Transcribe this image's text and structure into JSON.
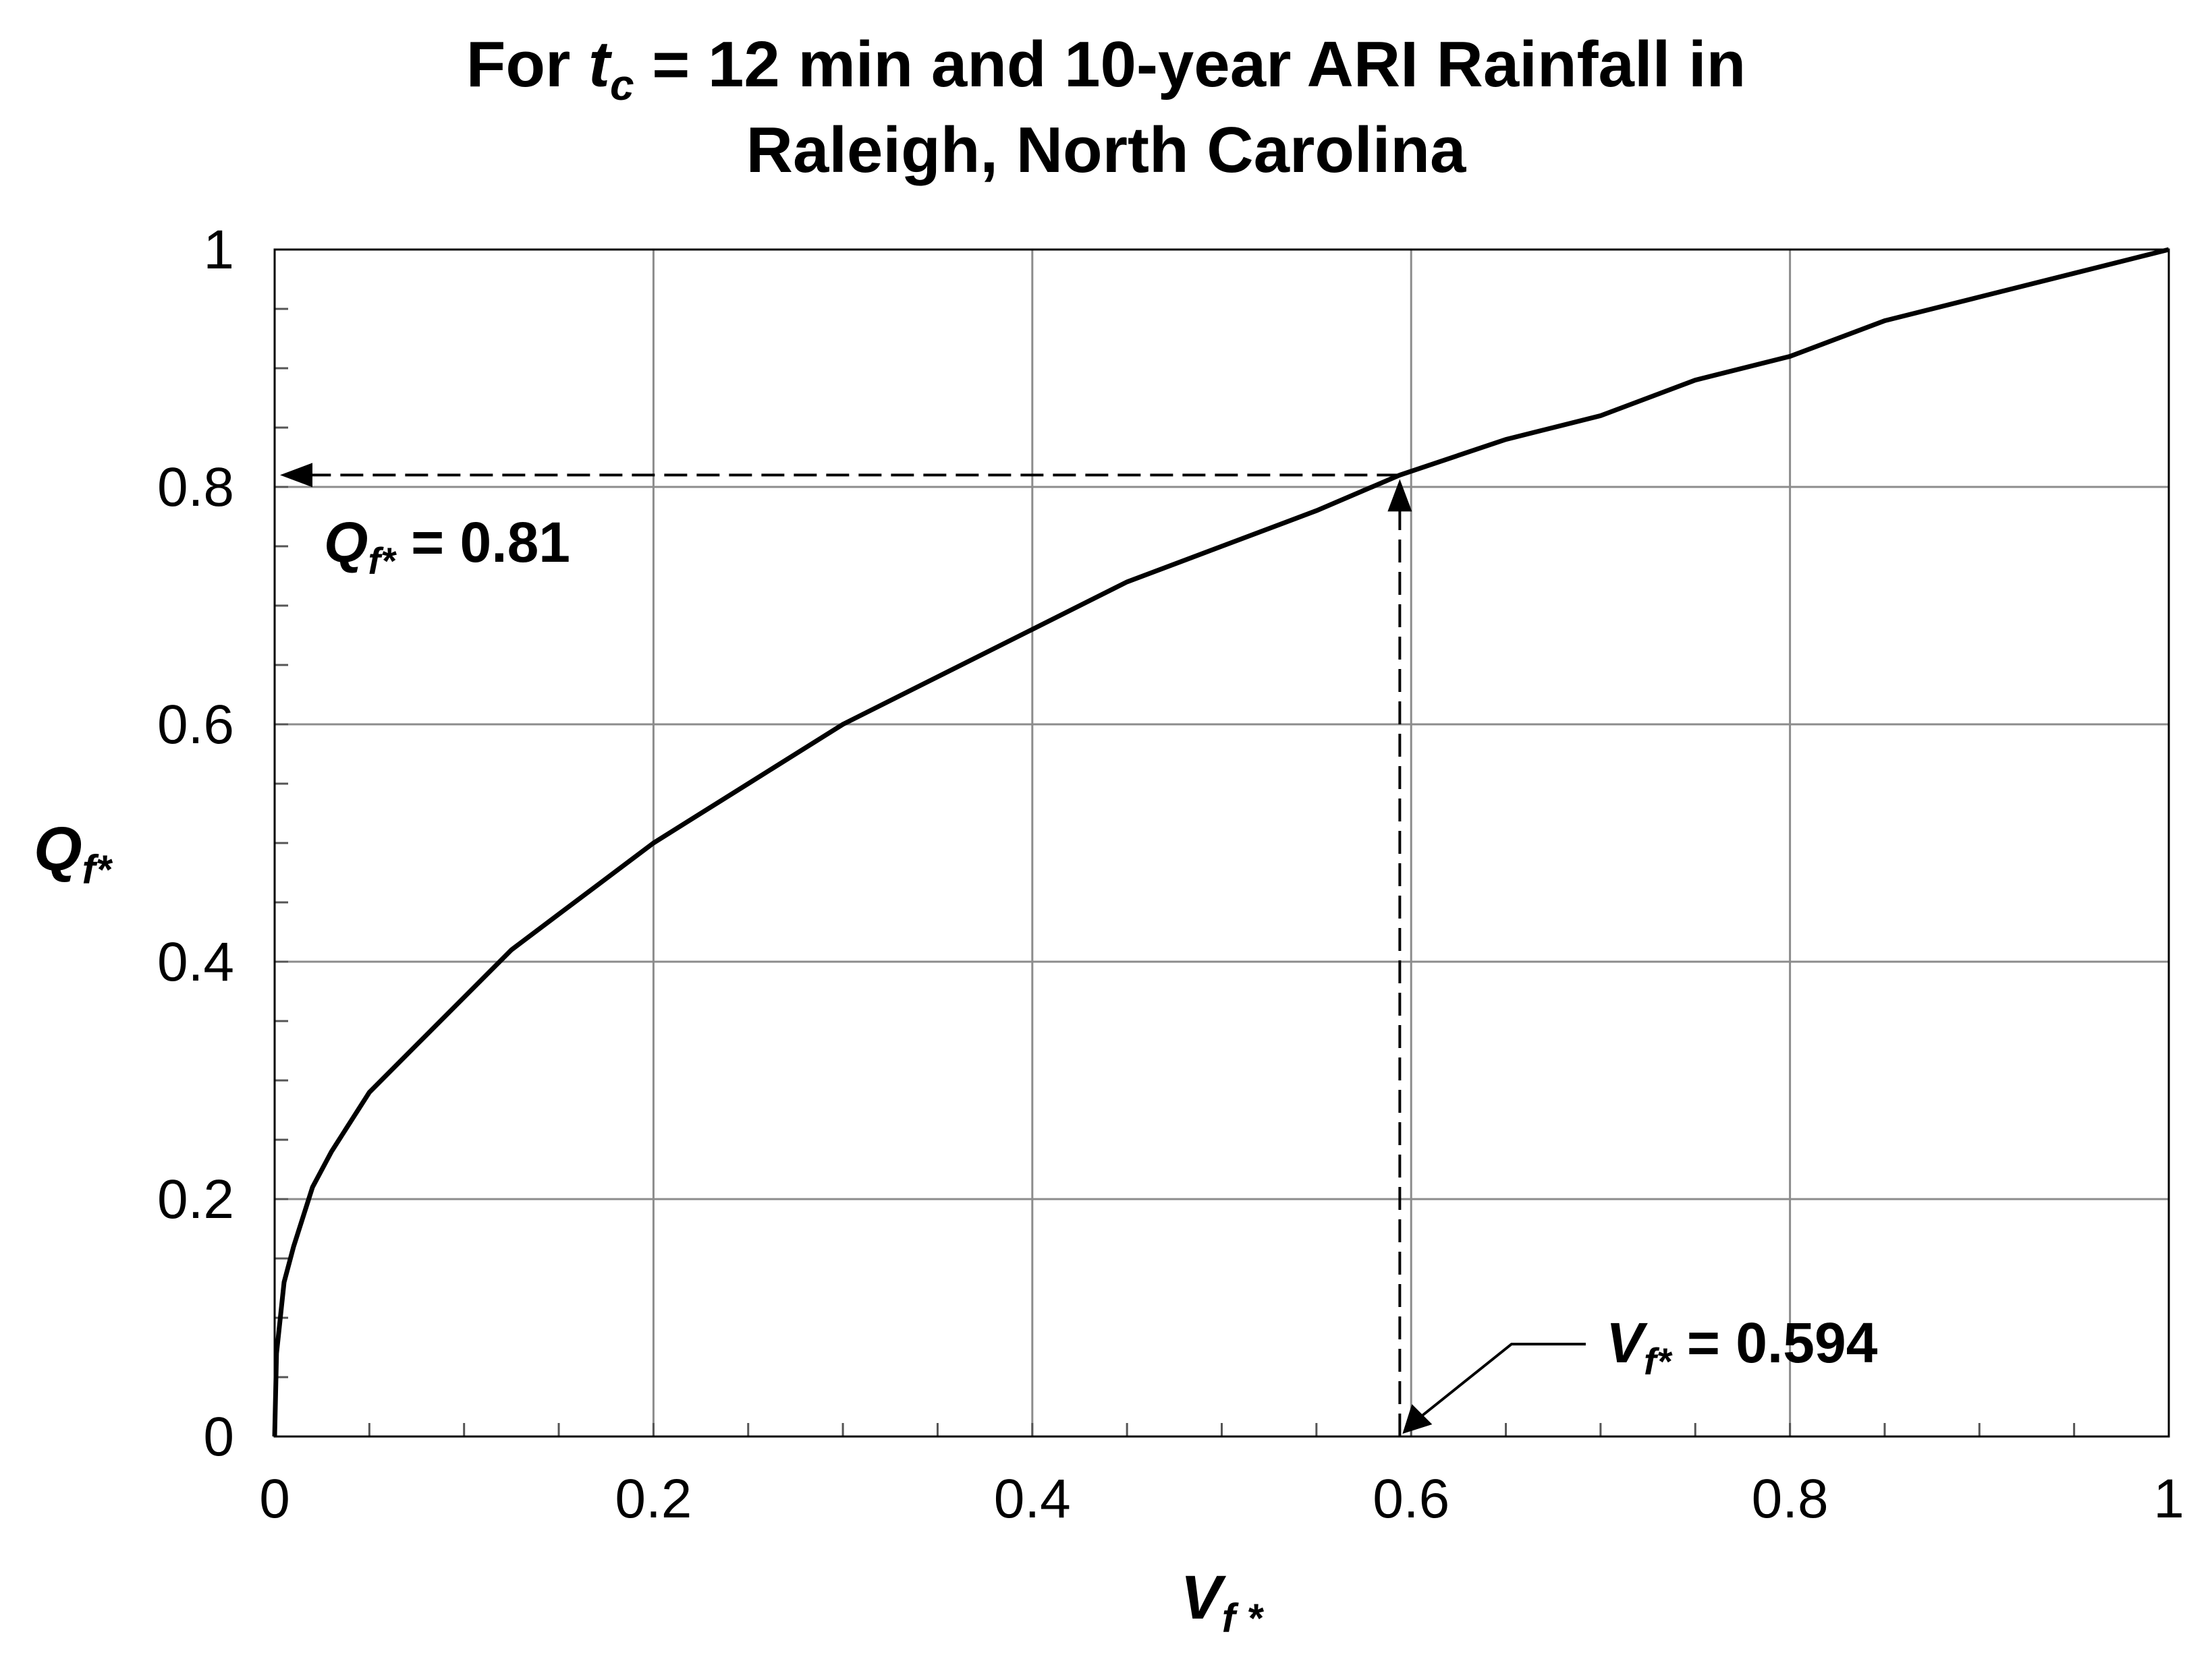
{
  "chart_data": {
    "type": "line",
    "title": {
      "line1_prefix": "For ",
      "line1_var": "t",
      "line1_var_sub": "c",
      "line1_suffix": " = 12 min and 10-year ARI Rainfall in",
      "line2": "Raleigh, North Carolina"
    },
    "xlabel": {
      "base": "V",
      "sub": "f *"
    },
    "ylabel": {
      "base": "Q",
      "sub": "f*"
    },
    "xlim": [
      0,
      1
    ],
    "ylim": [
      0,
      1
    ],
    "x_ticks": [
      0,
      0.2,
      0.4,
      0.6,
      0.8,
      1
    ],
    "x_tick_labels": [
      "0",
      "0.2",
      "0.4",
      "0.6",
      "0.8",
      "1"
    ],
    "y_ticks": [
      0,
      0.2,
      0.4,
      0.6,
      0.8,
      1
    ],
    "y_tick_labels": [
      "0",
      "0.2",
      "0.4",
      "0.6",
      "0.8",
      "1"
    ],
    "x_minor_step": 0.05,
    "y_minor_step": 0.05,
    "grid": true,
    "series": [
      {
        "x": [
          0,
          0.001,
          0.005,
          0.01,
          0.02,
          0.03,
          0.05,
          0.075,
          0.1,
          0.125,
          0.15,
          0.2,
          0.25,
          0.3,
          0.35,
          0.4,
          0.45,
          0.5,
          0.55,
          0.594,
          0.65,
          0.7,
          0.75,
          0.8,
          0.85,
          0.9,
          0.95,
          1.0
        ],
        "y": [
          0,
          0.07,
          0.13,
          0.16,
          0.21,
          0.24,
          0.29,
          0.33,
          0.37,
          0.41,
          0.44,
          0.5,
          0.55,
          0.6,
          0.64,
          0.68,
          0.72,
          0.75,
          0.78,
          0.81,
          0.84,
          0.86,
          0.89,
          0.91,
          0.94,
          0.96,
          0.98,
          1.0
        ],
        "color": "#000000"
      }
    ],
    "annotations": {
      "point": {
        "x": 0.594,
        "y": 0.81
      },
      "q_label": {
        "base": "Q",
        "sub": "f*",
        "value": " = 0.81"
      },
      "v_label": {
        "base": "V",
        "sub": "f*",
        "value": " = 0.594"
      }
    }
  }
}
